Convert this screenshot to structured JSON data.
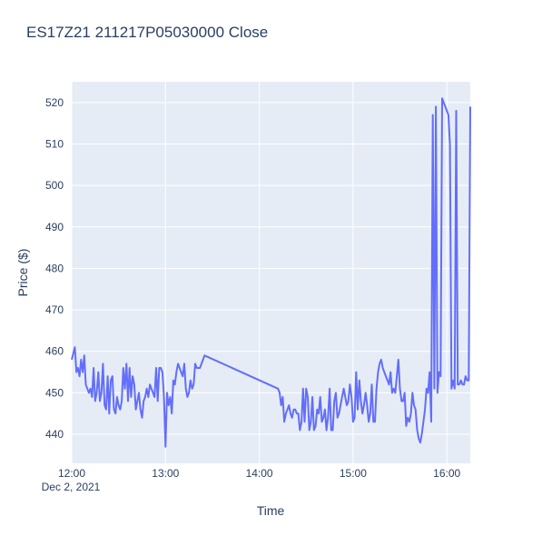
{
  "chart_data": {
    "type": "line",
    "title": "ES17Z21  211217P05030000 Close",
    "xlabel": "Time",
    "ylabel": "Price ($)",
    "x_date_label": "Dec 2, 2021",
    "x_ticks": [
      "12:00",
      "13:00",
      "14:00",
      "15:00",
      "16:00"
    ],
    "y_ticks": [
      440,
      450,
      460,
      470,
      480,
      490,
      500,
      510,
      520
    ],
    "xlim": [
      "12:00",
      "16:15"
    ],
    "ylim": [
      433,
      525
    ],
    "grid": true,
    "plot_bgcolor": "#e5ecf6",
    "line_color": "#636efa",
    "series": [
      {
        "x": [
          "12:00",
          "12:02",
          "12:03",
          "12:04",
          "12:05",
          "12:06",
          "12:07",
          "12:08",
          "12:09",
          "12:10",
          "12:11",
          "12:12",
          "12:13",
          "12:14",
          "12:15",
          "12:16",
          "12:17",
          "12:18",
          "12:19",
          "12:20",
          "12:21",
          "12:22",
          "12:23",
          "12:24",
          "12:25",
          "12:26",
          "12:27",
          "12:28",
          "12:29",
          "12:30",
          "12:31",
          "12:32",
          "12:33",
          "12:34",
          "12:35",
          "12:36",
          "12:37",
          "12:38",
          "12:39",
          "12:40",
          "12:41",
          "12:42",
          "12:43",
          "12:44",
          "12:45",
          "12:46",
          "12:47",
          "12:48",
          "12:49",
          "12:50",
          "12:51",
          "12:52",
          "12:53",
          "12:54",
          "12:55",
          "12:56",
          "12:57",
          "12:58",
          "12:59",
          "13:00",
          "13:01",
          "13:02",
          "13:03",
          "13:04",
          "13:05",
          "13:06",
          "13:07",
          "13:08",
          "13:09",
          "13:10",
          "13:11",
          "13:12",
          "13:13",
          "13:14",
          "13:15",
          "13:16",
          "13:17",
          "13:18",
          "13:19",
          "13:20",
          "13:22",
          "13:25",
          "14:12",
          "14:13",
          "14:14",
          "14:15",
          "14:16",
          "14:17",
          "14:18",
          "14:19",
          "14:20",
          "14:21",
          "14:22",
          "14:23",
          "14:24",
          "14:25",
          "14:26",
          "14:27",
          "14:28",
          "14:29",
          "14:30",
          "14:31",
          "14:32",
          "14:33",
          "14:34",
          "14:35",
          "14:36",
          "14:37",
          "14:38",
          "14:39",
          "14:40",
          "14:41",
          "14:42",
          "14:43",
          "14:44",
          "14:45",
          "14:46",
          "14:47",
          "14:48",
          "14:49",
          "14:50",
          "14:51",
          "14:52",
          "14:53",
          "14:54",
          "14:55",
          "14:56",
          "14:57",
          "14:58",
          "14:59",
          "15:00",
          "15:01",
          "15:02",
          "15:03",
          "15:04",
          "15:05",
          "15:06",
          "15:07",
          "15:08",
          "15:09",
          "15:10",
          "15:11",
          "15:12",
          "15:13",
          "15:14",
          "15:15",
          "15:16",
          "15:17",
          "15:18",
          "15:19",
          "15:20",
          "15:21",
          "15:22",
          "15:23",
          "15:24",
          "15:25",
          "15:26",
          "15:27",
          "15:28",
          "15:29",
          "15:30",
          "15:31",
          "15:32",
          "15:33",
          "15:34",
          "15:35",
          "15:36",
          "15:37",
          "15:38",
          "15:39",
          "15:40",
          "15:41",
          "15:42",
          "15:43",
          "15:44",
          "15:45",
          "15:46",
          "15:47",
          "15:48",
          "15:49",
          "15:50",
          "15:51",
          "15:52",
          "15:53",
          "15:54",
          "15:55",
          "15:56",
          "15:57",
          "15:58",
          "15:59",
          "16:00",
          "16:01",
          "16:02",
          "16:03",
          "16:04",
          "16:05",
          "16:06",
          "16:07",
          "16:08",
          "16:09",
          "16:10",
          "16:11",
          "16:12",
          "16:13",
          "16:14",
          "16:15"
        ],
        "y": [
          458,
          461,
          455,
          456,
          454,
          458,
          455,
          459,
          452,
          451,
          450,
          451,
          449,
          456,
          448,
          450,
          455,
          448,
          450,
          457,
          447,
          446,
          454,
          445,
          453,
          454,
          446,
          445,
          449,
          447,
          446,
          448,
          456,
          451,
          457,
          448,
          456,
          449,
          454,
          452,
          446,
          448,
          450,
          446,
          444,
          448,
          449,
          451,
          449,
          452,
          451,
          450,
          449,
          456,
          448,
          456,
          456,
          455,
          449,
          437,
          450,
          447,
          449,
          445,
          453,
          452,
          455,
          457,
          456,
          455,
          454,
          457,
          451,
          449,
          450,
          453,
          451,
          452,
          457,
          456,
          456,
          459,
          451,
          450,
          447,
          449,
          443,
          445,
          446,
          447,
          445,
          444,
          446,
          446,
          445,
          445,
          441,
          443,
          451,
          443,
          451,
          449,
          441,
          443,
          449,
          441,
          442,
          446,
          445,
          449,
          443,
          444,
          446,
          441,
          444,
          451,
          441,
          441,
          448,
          450,
          444,
          445,
          447,
          449,
          451,
          449,
          447,
          448,
          452,
          449,
          443,
          444,
          455,
          446,
          453,
          448,
          445,
          447,
          450,
          447,
          443,
          445,
          452,
          443,
          443,
          451,
          455,
          457,
          458,
          456,
          455,
          454,
          453,
          452,
          455,
          450,
          451,
          450,
          454,
          458,
          451,
          448,
          448,
          450,
          442,
          444,
          443,
          445,
          450,
          447,
          446,
          441,
          439,
          438,
          440,
          443,
          446,
          451,
          450,
          455,
          443,
          517,
          451,
          519,
          450,
          455,
          454,
          521,
          520,
          519,
          518,
          517,
          510,
          451,
          453,
          451,
          518,
          452,
          452,
          453,
          452,
          452,
          454,
          453,
          453,
          519
        ]
      }
    ]
  }
}
